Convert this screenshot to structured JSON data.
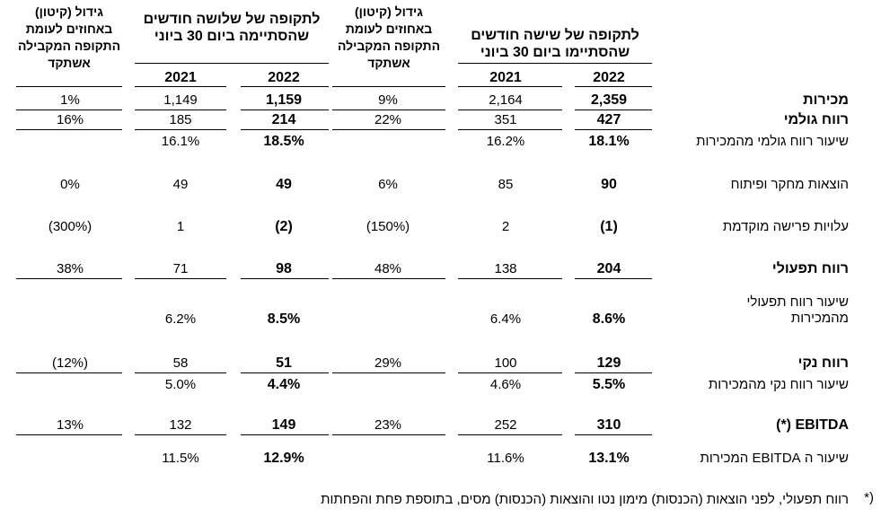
{
  "header": {
    "six_months": "לתקופה של שישה חודשים שהסתיימו ביום 30 ביוני",
    "growth_six": "גידול (קיטון) באחוזים לעומת התקופה המקבילה אשתקד",
    "three_months": "לתקופה של שלושה חודשים שהסתיימה ביום 30 ביוני",
    "growth_three": "גידול (קיטון) באחוזים לעומת התקופה המקבילה אשתקד",
    "years": [
      "2022",
      "2021",
      "2022",
      "2021"
    ]
  },
  "table": {
    "rows": [
      {
        "label": "מכירות",
        "values": [
          "2,359",
          "2,164",
          "9%",
          "1,159",
          "1,149",
          "1%"
        ]
      },
      {
        "label": "רווח גולמי",
        "values": [
          "427",
          "351",
          "22%",
          "214",
          "185",
          "16%"
        ]
      },
      {
        "label": "שיעור רווח גולמי מהמכירות",
        "values": [
          "18.1%",
          "16.2%",
          null,
          "18.5%",
          "16.1%",
          null
        ]
      },
      {
        "label": "הוצאות מחקר ופיתוח",
        "values": [
          "90",
          "85",
          "6%",
          "49",
          "49",
          "0%"
        ]
      },
      {
        "label": "עלויות פרישה מוקדמת",
        "values": [
          "(1)",
          "2",
          "(150%)",
          "(2)",
          "1",
          "(300%)"
        ]
      },
      {
        "label": "רווח תפעולי",
        "values": [
          "204",
          "138",
          "48%",
          "98",
          "71",
          "38%"
        ]
      },
      {
        "label": "שיעור רווח תפעולי מהמכירות",
        "values": [
          "8.6%",
          "6.4%",
          null,
          "8.5%",
          "6.2%",
          null
        ]
      },
      {
        "label": "רווח נקי",
        "values": [
          "129",
          "100",
          "29%",
          "51",
          "58",
          "(12%)"
        ]
      },
      {
        "label": "שיעור רווח נקי מהמכירות",
        "values": [
          "5.5%",
          "4.6%",
          null,
          "4.4%",
          "5.0%",
          null
        ]
      },
      {
        "label": "EBITDA (*)",
        "values": [
          "310",
          "252",
          "23%",
          "149",
          "132",
          "13%"
        ]
      },
      {
        "label": "שיעור ה EBITDA המכירות",
        "values": [
          "13.1%",
          "11.6%",
          null,
          "12.9%",
          "11.5%",
          null
        ]
      }
    ]
  },
  "footnote": {
    "marker": "*)",
    "text": "רווח תפעולי, לפני הוצאות (הכנסות) מימון נטו והוצאות (הכנסות) מסים, בתוספת פחת והפחתות"
  }
}
